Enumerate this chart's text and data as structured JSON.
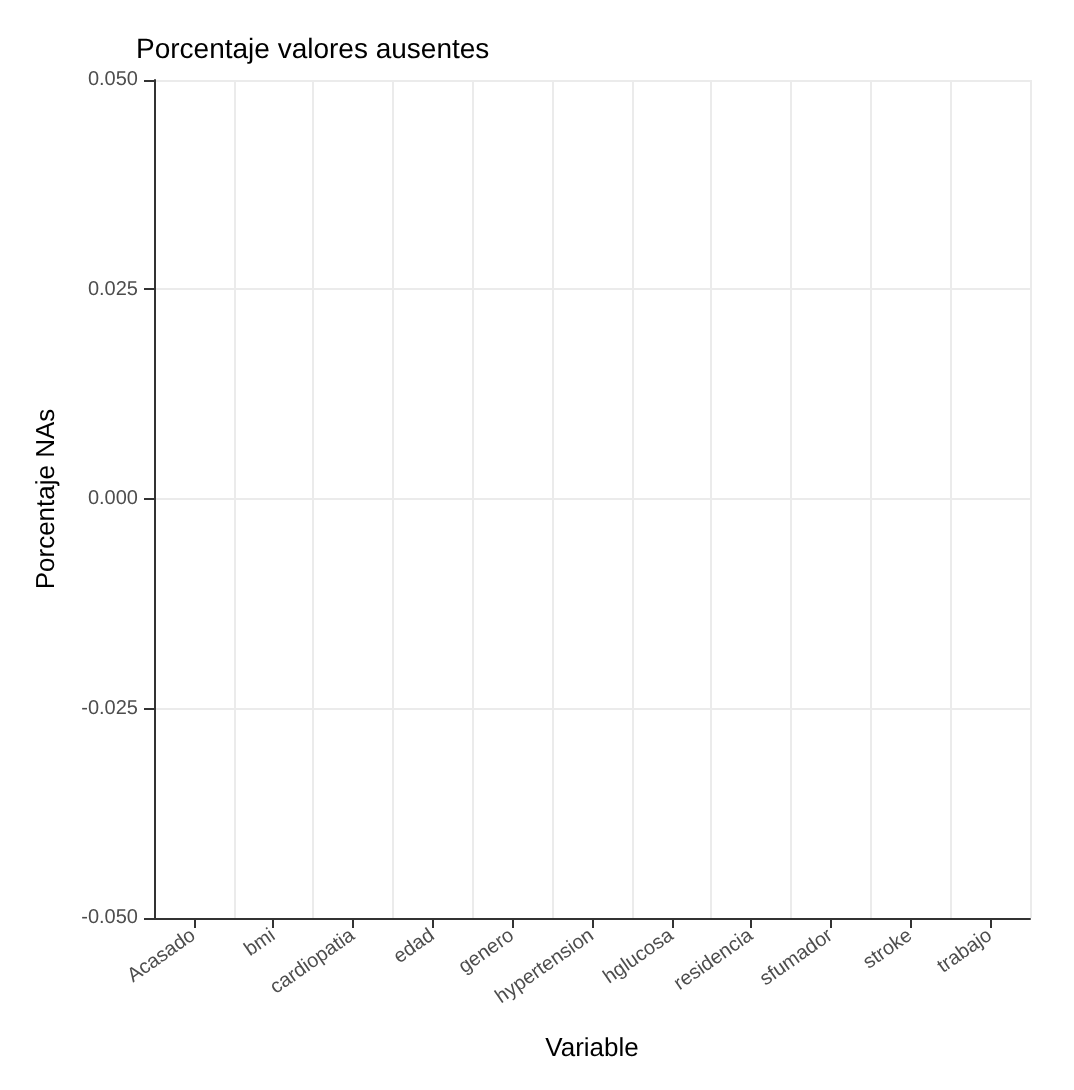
{
  "chart_data": {
    "type": "bar",
    "title": "Porcentaje valores ausentes",
    "xlabel": "Variable",
    "ylabel": "Porcentaje NAs",
    "categories": [
      "Acasado",
      "bmi",
      "cardiopatia",
      "edad",
      "genero",
      "hypertension",
      "hglucosa",
      "residencia",
      "sfumador",
      "stroke",
      "trabajo"
    ],
    "values": [
      0,
      0,
      0,
      0,
      0,
      0,
      0,
      0,
      0,
      0,
      0
    ],
    "ylim": [
      -0.05,
      0.05
    ],
    "yticks": [
      {
        "value": -0.05,
        "label": "-0.050"
      },
      {
        "value": -0.025,
        "label": "-0.025"
      },
      {
        "value": 0,
        "label": "0.000"
      },
      {
        "value": 0.025,
        "label": "0.025"
      },
      {
        "value": 0.05,
        "label": "0.050"
      }
    ],
    "grid": true
  }
}
